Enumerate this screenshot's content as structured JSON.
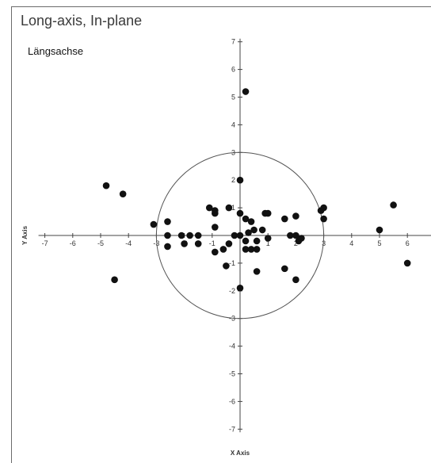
{
  "title": "Long-axis, In-plane",
  "subtitle": "Längsachse",
  "chart_data": {
    "type": "scatter",
    "xlabel": "X Axis",
    "ylabel": "Y Axis",
    "xlim": [
      -7,
      7
    ],
    "ylim": [
      -7,
      7
    ],
    "x_ticks": [
      -7,
      -6,
      -5,
      -4,
      -3,
      -2,
      -1,
      0,
      1,
      2,
      3,
      4,
      5,
      6
    ],
    "y_ticks": [
      7,
      6,
      5,
      4,
      3,
      2,
      1,
      0,
      -1,
      -2,
      -3,
      -4,
      -5,
      -6,
      -7
    ],
    "reference_circle_radius": 3,
    "grid": false,
    "points": [
      {
        "x": 0.2,
        "y": 5.2
      },
      {
        "x": -4.8,
        "y": 1.8
      },
      {
        "x": -4.2,
        "y": 1.5
      },
      {
        "x": -4.5,
        "y": -1.6
      },
      {
        "x": 0,
        "y": 2
      },
      {
        "x": -3.1,
        "y": 0.4
      },
      {
        "x": -2.6,
        "y": 0.5
      },
      {
        "x": -2.6,
        "y": 0
      },
      {
        "x": -2.6,
        "y": -0.4
      },
      {
        "x": -2.1,
        "y": 0
      },
      {
        "x": -1.8,
        "y": 0
      },
      {
        "x": -2.0,
        "y": -0.3
      },
      {
        "x": -1.5,
        "y": -0.3
      },
      {
        "x": -1.5,
        "y": 0
      },
      {
        "x": -1.1,
        "y": 1.0
      },
      {
        "x": -0.9,
        "y": 0.8
      },
      {
        "x": -0.9,
        "y": 0.9
      },
      {
        "x": -0.9,
        "y": 0.3
      },
      {
        "x": -0.9,
        "y": -0.6
      },
      {
        "x": -0.6,
        "y": -0.5
      },
      {
        "x": -0.5,
        "y": -1.1
      },
      {
        "x": -0.4,
        "y": 1.0
      },
      {
        "x": -0.4,
        "y": -0.3
      },
      {
        "x": -0.2,
        "y": 0
      },
      {
        "x": 0,
        "y": 0.8
      },
      {
        "x": 0,
        "y": 0
      },
      {
        "x": 0,
        "y": -1.9
      },
      {
        "x": 0.2,
        "y": 0.6
      },
      {
        "x": 0.2,
        "y": -0.2
      },
      {
        "x": 0.2,
        "y": -0.5
      },
      {
        "x": 0.3,
        "y": 0.1
      },
      {
        "x": 0.4,
        "y": 0.5
      },
      {
        "x": 0.4,
        "y": -0.5
      },
      {
        "x": 0.5,
        "y": 0.2
      },
      {
        "x": 0.6,
        "y": -0.2
      },
      {
        "x": 0.6,
        "y": -0.5
      },
      {
        "x": 0.6,
        "y": -1.3
      },
      {
        "x": 0.8,
        "y": 0.2
      },
      {
        "x": 0.9,
        "y": 0.8
      },
      {
        "x": 1.0,
        "y": 0.8
      },
      {
        "x": 1.0,
        "y": -0.1
      },
      {
        "x": 1.6,
        "y": -1.2
      },
      {
        "x": 1.6,
        "y": 0.6
      },
      {
        "x": 1.8,
        "y": 0
      },
      {
        "x": 2.0,
        "y": 0.7
      },
      {
        "x": 2.0,
        "y": 0
      },
      {
        "x": 2.1,
        "y": -0.2
      },
      {
        "x": 2.2,
        "y": -0.1
      },
      {
        "x": 2.0,
        "y": -1.6
      },
      {
        "x": 2.9,
        "y": 0.9
      },
      {
        "x": 3.0,
        "y": 1.0
      },
      {
        "x": 3.0,
        "y": 0.6
      },
      {
        "x": 5.0,
        "y": 0.2
      },
      {
        "x": 5.5,
        "y": 1.1
      },
      {
        "x": 6.0,
        "y": -1.0
      }
    ]
  }
}
